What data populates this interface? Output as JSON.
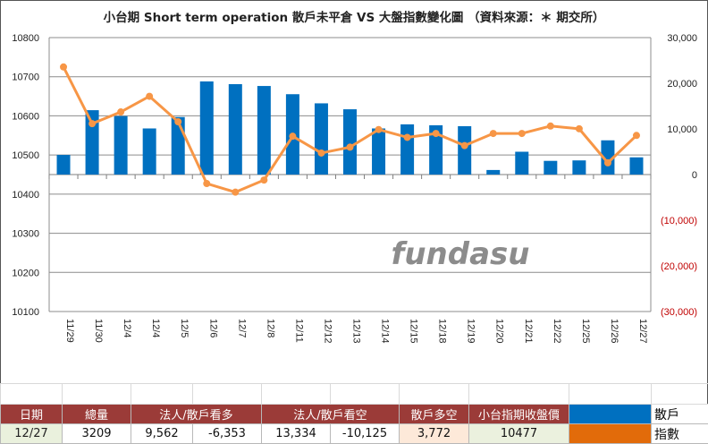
{
  "chart_data": {
    "type": "bar+line",
    "title": "小台期 Short term operation  散戶未平倉 VS 大盤指數變化圖   （資料來源：＊ 期交所）",
    "categories": [
      "11/29",
      "11/30",
      "12/4",
      "12/4",
      "12/5",
      "12/6",
      "12/7",
      "12/8",
      "12/11",
      "12/12",
      "12/13",
      "12/14",
      "12/15",
      "12/18",
      "12/19",
      "12/20",
      "12/21",
      "12/22",
      "12/25",
      "12/26",
      "12/27"
    ],
    "left_axis": {
      "min": 10100,
      "max": 10800,
      "step": 100,
      "ticks": [
        "10800",
        "10700",
        "10600",
        "10500",
        "10400",
        "10300",
        "10200",
        "10100"
      ]
    },
    "right_axis": {
      "min": -30000,
      "max": 30000,
      "step": 10000,
      "ticks": [
        "30,000",
        "20,000",
        "10,000",
        "0",
        "(10,000)",
        "(20,000)",
        "(30,000)"
      ]
    },
    "series": [
      {
        "name": "散戶",
        "axis": "right",
        "render": "bar",
        "color": "#0070c0",
        "values": [
          4300,
          14100,
          12800,
          10100,
          12600,
          20400,
          19800,
          19400,
          17600,
          15600,
          14300,
          10100,
          11000,
          10800,
          10600,
          1000,
          5000,
          3000,
          3100,
          7500,
          3772
        ]
      },
      {
        "name": "指數",
        "axis": "left",
        "render": "line",
        "color": "#f79646",
        "values": [
          10725,
          10580,
          10610,
          10650,
          10585,
          10427,
          10405,
          10436,
          10548,
          10505,
          10520,
          10565,
          10545,
          10555,
          10524,
          10555,
          10555,
          10574,
          10567,
          10480,
          10550
        ]
      }
    ],
    "watermark": "fundasu",
    "grid": true
  },
  "table": {
    "headers": [
      "日期",
      "總量",
      "法人/散戶看多",
      "法人/散戶看空",
      "散戶多空",
      "小台指期收盤價"
    ],
    "row": {
      "date": "12/27",
      "total": "3209",
      "long_inst": "9,562",
      "long_retail": "-6,353",
      "short_inst": "13,334",
      "short_retail": "-10,125",
      "retail_net": "3,772",
      "close": "10477"
    },
    "legend": [
      {
        "label": "散戶",
        "color": "#0070c0"
      },
      {
        "label": "指數",
        "color": "#e26b0a"
      }
    ]
  }
}
